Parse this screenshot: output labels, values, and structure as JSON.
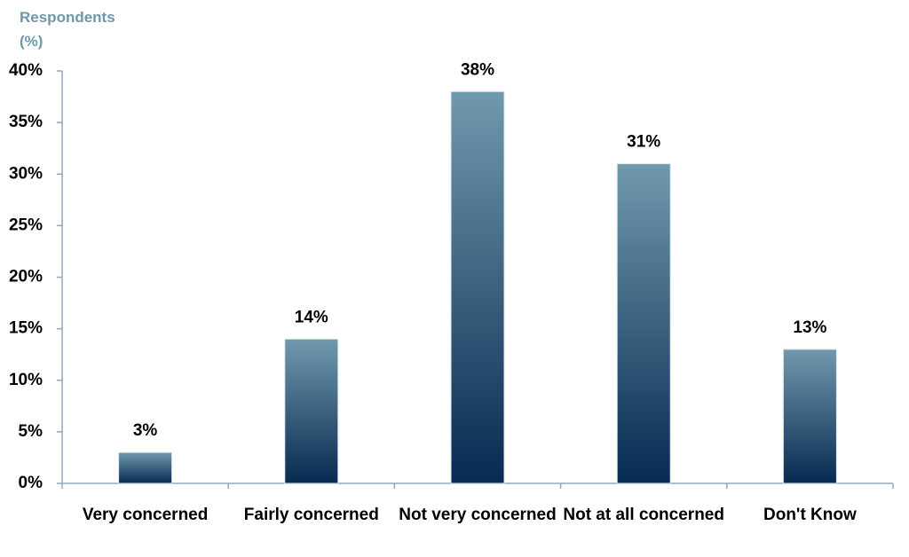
{
  "chart_data": {
    "type": "bar",
    "y_label": "Respondents (%)",
    "categories": [
      "Very concerned",
      "Fairly concerned",
      "Not very concerned",
      "Not at all concerned",
      "Don't Know"
    ],
    "values": [
      3,
      14,
      38,
      31,
      13
    ],
    "value_labels": [
      "3%",
      "14%",
      "38%",
      "31%",
      "13%"
    ],
    "gradient_colors": [
      "#7099ad",
      "#072a51"
    ],
    "ylim": [
      0,
      40
    ],
    "yticks": [
      {
        "value": 0,
        "label": "0%"
      },
      {
        "value": 5,
        "label": "5%"
      },
      {
        "value": 10,
        "label": "10%"
      },
      {
        "value": 15,
        "label": "15%"
      },
      {
        "value": 20,
        "label": "20%"
      },
      {
        "value": 25,
        "label": "25%"
      },
      {
        "value": 30,
        "label": "30%"
      },
      {
        "value": 35,
        "label": "35%"
      },
      {
        "value": 40,
        "label": "40%"
      }
    ],
    "grid": false
  }
}
